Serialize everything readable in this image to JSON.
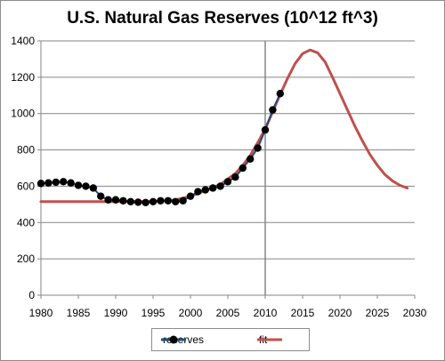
{
  "chart_data": {
    "type": "line",
    "title": "U.S. Natural Gas Reserves (10^12 ft^3)",
    "xlabel": "",
    "ylabel": "",
    "xlim": [
      1980,
      2030
    ],
    "ylim": [
      0,
      1400
    ],
    "x_ticks": [
      "1980",
      "1985",
      "1990",
      "1995",
      "2000",
      "2005",
      "2010",
      "2015",
      "2020",
      "2025",
      "2030"
    ],
    "y_ticks": [
      "0",
      "200",
      "400",
      "600",
      "800",
      "1000",
      "1200",
      "1400"
    ],
    "grid": true,
    "vertical_marker_x": 2010,
    "legend_position": "bottom",
    "series": [
      {
        "name": "reserves",
        "color": "#1f4e79",
        "marker": "circle",
        "x": [
          1980,
          1981,
          1982,
          1983,
          1984,
          1985,
          1986,
          1987,
          1988,
          1989,
          1990,
          1991,
          1992,
          1993,
          1994,
          1995,
          1996,
          1997,
          1998,
          1999,
          2000,
          2001,
          2002,
          2003,
          2004,
          2005,
          2006,
          2007,
          2008,
          2009,
          2010,
          2011,
          2012
        ],
        "y": [
          615,
          618,
          622,
          625,
          618,
          605,
          600,
          590,
          545,
          525,
          525,
          520,
          515,
          512,
          510,
          515,
          520,
          520,
          515,
          520,
          545,
          570,
          580,
          590,
          600,
          625,
          650,
          700,
          750,
          810,
          910,
          1020,
          1110
        ]
      },
      {
        "name": "fit",
        "color": "#c0504d",
        "x": [
          1980,
          1985,
          1990,
          1993,
          1996,
          1998,
          2000,
          2002,
          2004,
          2006,
          2007,
          2008,
          2009,
          2010,
          2011,
          2012,
          2013,
          2014,
          2015,
          2016,
          2017,
          2018,
          2019,
          2020,
          2021,
          2022,
          2023,
          2024,
          2025,
          2026,
          2027,
          2028,
          2029
        ],
        "y": [
          515,
          515,
          515,
          516,
          518,
          525,
          545,
          575,
          610,
          670,
          715,
          770,
          840,
          915,
          1010,
          1105,
          1195,
          1275,
          1330,
          1350,
          1335,
          1285,
          1200,
          1110,
          1020,
          930,
          850,
          775,
          715,
          665,
          630,
          605,
          590
        ]
      }
    ]
  }
}
